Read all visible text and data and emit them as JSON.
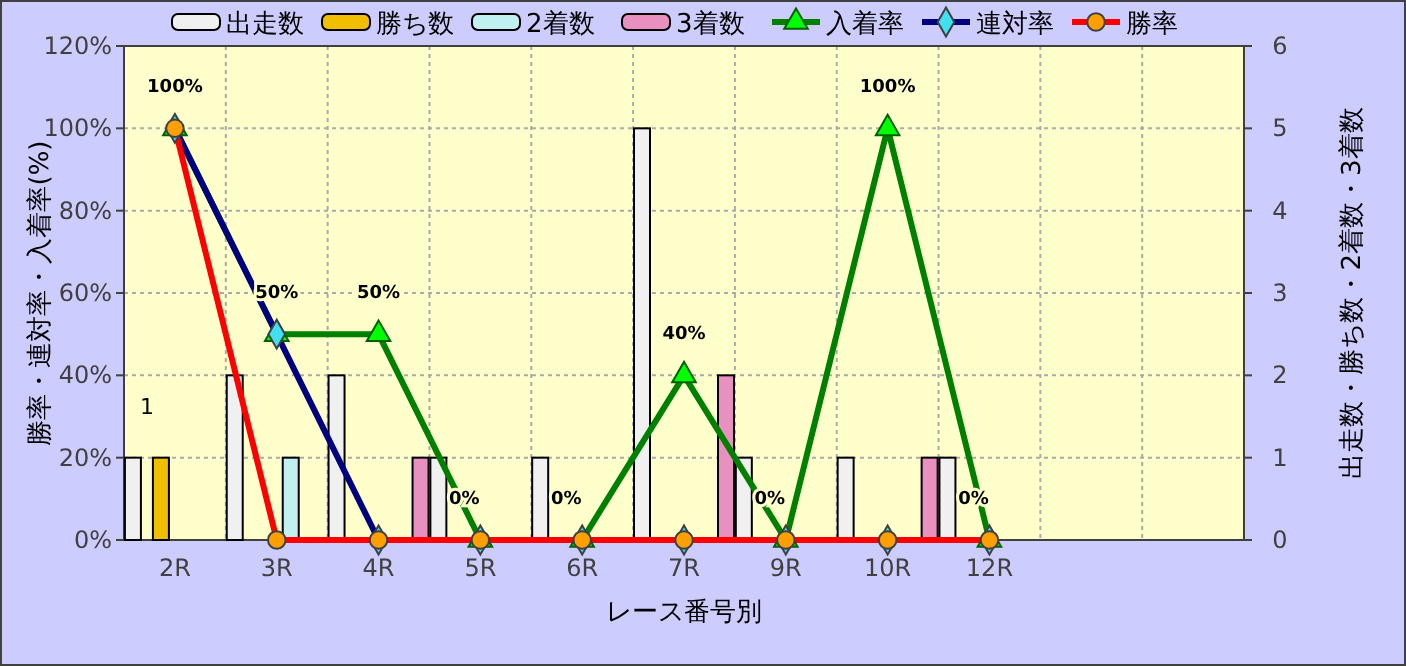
{
  "chart_data": {
    "type": "bar",
    "xlabel": "レース番号別",
    "ylabel": "勝率・連対率・入着率(%)",
    "y2label": "出走数・勝ち数・2着数・3着数",
    "categories": [
      "2R",
      "3R",
      "4R",
      "5R",
      "6R",
      "7R",
      "9R",
      "10R",
      "12R",
      null,
      null
    ],
    "ylim": [
      0,
      120
    ],
    "yticks": [
      {
        "value": 0,
        "label": "0%"
      },
      {
        "value": 20,
        "label": "20%"
      },
      {
        "value": 40,
        "label": "40%"
      },
      {
        "value": 60,
        "label": "60%"
      },
      {
        "value": 80,
        "label": "80%"
      },
      {
        "value": 100,
        "label": "100%"
      },
      {
        "value": 120,
        "label": "120%"
      }
    ],
    "y2lim": [
      0,
      6
    ],
    "y2ticks": [
      0,
      1,
      2,
      3,
      4,
      5,
      6
    ],
    "grid": true,
    "legend": "top",
    "series": [
      {
        "name": "出走数",
        "axis": "y2",
        "color": "#f0f0f0",
        "values": [
          1,
          2,
          2,
          1,
          1,
          5,
          1,
          1,
          1,
          null,
          null
        ]
      },
      {
        "name": "勝ち数",
        "axis": "y2",
        "color": "#f0c000",
        "values": [
          1,
          0,
          0,
          0,
          0,
          0,
          0,
          0,
          0,
          null,
          null
        ],
        "value_labels": [
          "1",
          null,
          null,
          null,
          null,
          null,
          null,
          null,
          null,
          null,
          null
        ]
      },
      {
        "name": "2着数",
        "axis": "y2",
        "color": "#c0f0f0",
        "values": [
          0,
          1,
          0,
          0,
          0,
          0,
          0,
          0,
          0,
          null,
          null
        ]
      },
      {
        "name": "3着数",
        "axis": "y2",
        "color": "#e890c0",
        "values": [
          0,
          0,
          1,
          0,
          0,
          2,
          0,
          1,
          0,
          null,
          null
        ]
      },
      {
        "name": "入着率",
        "type": "line",
        "color": "#008000",
        "marker": "triangle",
        "values": [
          100,
          50,
          50,
          0,
          0,
          40,
          0,
          100,
          0,
          null,
          null
        ],
        "value_labels": [
          "100%",
          "50%",
          "50%",
          "0%",
          "0%",
          "40%",
          "0%",
          "100%",
          "0%",
          null,
          null
        ]
      },
      {
        "name": "連対率",
        "type": "line",
        "color": "#000080",
        "marker": "diamond",
        "values": [
          100,
          50,
          0,
          0,
          0,
          0,
          0,
          0,
          0,
          null,
          null
        ]
      },
      {
        "name": "勝率",
        "type": "line",
        "color": "#ff0000",
        "marker": "circle",
        "values": [
          100,
          0,
          0,
          0,
          0,
          0,
          0,
          0,
          0,
          null,
          null
        ]
      }
    ]
  }
}
